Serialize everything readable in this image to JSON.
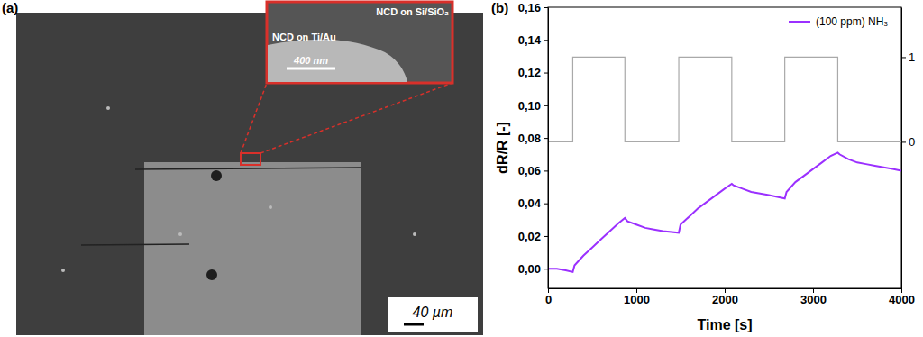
{
  "chart_data": {
    "type": "line",
    "title": "(b)",
    "x_label": "Time [s]",
    "y_label": "dR/R [-]",
    "xlim": [
      0,
      4000
    ],
    "xticks": [
      0,
      1000,
      2000,
      3000,
      4000
    ],
    "ylim": [
      -0.012,
      0.16
    ],
    "yticks": [
      {
        "value": 0,
        "label": "0,00"
      },
      {
        "value": 0.02,
        "label": "0,02"
      },
      {
        "value": 0.04,
        "label": "0,04"
      },
      {
        "value": 0.06,
        "label": "0,06"
      },
      {
        "value": 0.08,
        "label": "0,08"
      },
      {
        "value": 0.1,
        "label": "0,10"
      },
      {
        "value": 0.12,
        "label": "0,12"
      },
      {
        "value": 0.14,
        "label": "0,14"
      },
      {
        "value": 0.16,
        "label": "0,16"
      }
    ],
    "y2lim": [
      -1.73,
      1.59
    ],
    "y2ticks": [
      0,
      1
    ],
    "legend": "upper right",
    "grid": false,
    "series": [
      {
        "color": "#a9a9a9",
        "axis": "y2",
        "line_style": "solid",
        "x": [
          0,
          280,
          280,
          870,
          870,
          1480,
          1480,
          2080,
          2080,
          2680,
          2680,
          3280,
          3280,
          4000
        ],
        "values": [
          0,
          0,
          1,
          1,
          0,
          0,
          1,
          1,
          0,
          0,
          1,
          1,
          0,
          0
        ]
      },
      {
        "name": "(100 ppm) NH₃",
        "color": "#9b30ff",
        "line_style": "solid",
        "x": [
          0,
          100,
          200,
          280,
          300,
          400,
          500,
          600,
          700,
          800,
          870,
          900,
          1000,
          1100,
          1200,
          1300,
          1480,
          1500,
          1600,
          1700,
          1800,
          1900,
          2000,
          2080,
          2100,
          2200,
          2300,
          2400,
          2500,
          2680,
          2700,
          2800,
          2900,
          3000,
          3100,
          3200,
          3280,
          3300,
          3400,
          3500,
          3600,
          3700,
          3800,
          3900,
          4000
        ],
        "values": [
          0.0,
          0.0,
          -0.001,
          -0.002,
          0.002,
          0.008,
          0.013,
          0.018,
          0.023,
          0.028,
          0.031,
          0.029,
          0.027,
          0.025,
          0.024,
          0.023,
          0.022,
          0.027,
          0.032,
          0.037,
          0.041,
          0.045,
          0.049,
          0.052,
          0.051,
          0.049,
          0.047,
          0.046,
          0.045,
          0.043,
          0.047,
          0.053,
          0.057,
          0.061,
          0.065,
          0.069,
          0.071,
          0.07,
          0.067,
          0.065,
          0.064,
          0.063,
          0.062,
          0.061,
          0.06
        ]
      }
    ]
  },
  "sem_image": {
    "panel_label": "(a)",
    "inset_labels": [
      "NCD on Si/SiO₂",
      "NCD on Ti/Au"
    ],
    "inset_scale_bar": "400 nm",
    "scale_bar": "40 µm"
  }
}
